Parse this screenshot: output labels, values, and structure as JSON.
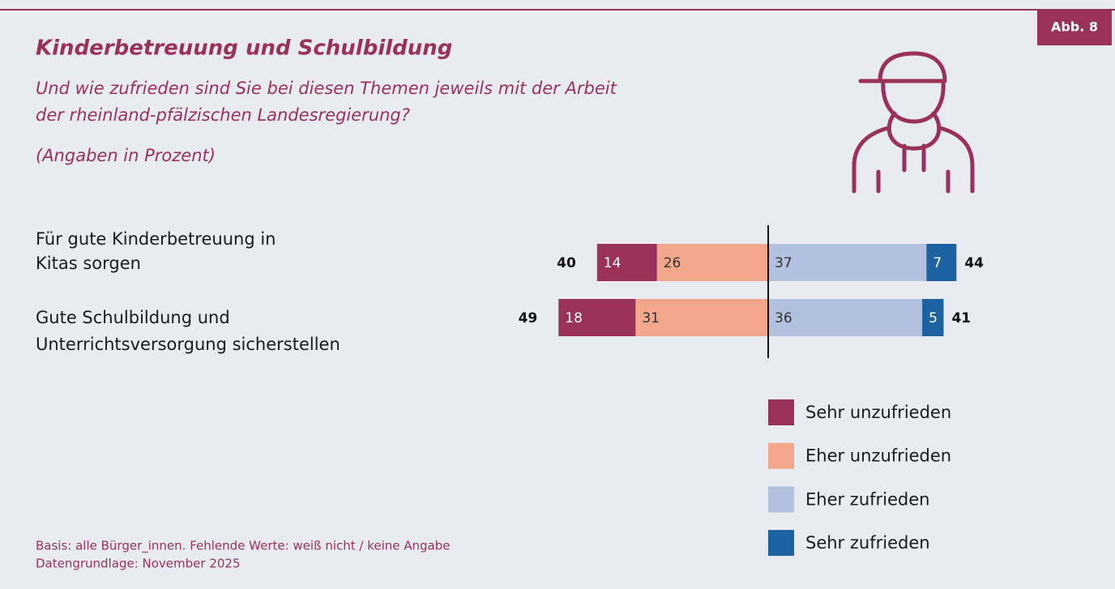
{
  "chart_data": {
    "type": "diverging_bar",
    "badge": "Abb. 8",
    "title": "Kinderbetreuung und Schulbildung",
    "subtitle": [
      "Und wie zufrieden sind Sie bei diesen Themen jeweils mit der Arbeit",
      "der rheinland-pfälzischen Landesregierung?"
    ],
    "unit_note": "(Angaben in Prozent)",
    "categories": [
      [
        "Für gute Kinderbetreuung in",
        "Kitas sorgen"
      ],
      [
        "Gute Schulbildung und",
        "Unterrichtsversorgung sicherstellen"
      ]
    ],
    "series": [
      {
        "name": "Sehr unzufrieden",
        "color": "#993158",
        "side": "left",
        "values": [
          14,
          18
        ]
      },
      {
        "name": "Eher unzufrieden",
        "color": "#f2a68a",
        "side": "left",
        "values": [
          26,
          31
        ]
      },
      {
        "name": "Eher zufrieden",
        "color": "#b2c1de",
        "side": "right",
        "values": [
          37,
          36
        ]
      },
      {
        "name": "Sehr zufrieden",
        "color": "#1d62a0",
        "side": "right",
        "values": [
          7,
          5
        ]
      }
    ],
    "left_totals": [
      40,
      49
    ],
    "right_totals": [
      44,
      41
    ],
    "notes": [
      "Basis: alle Bürger_innen. Fehlende Werte: weiß nicht / keine Angabe",
      "Datengrundlage: November 2025"
    ]
  }
}
